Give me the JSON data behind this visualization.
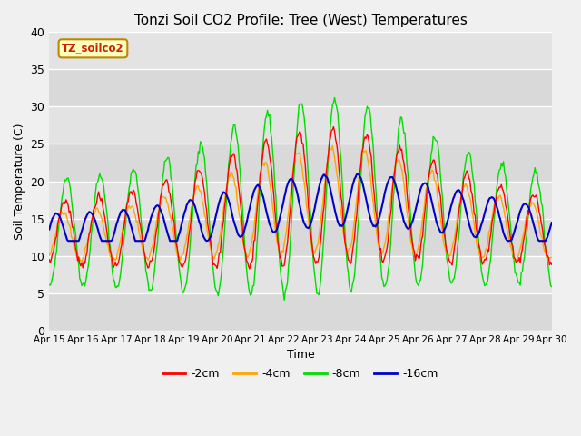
{
  "title": "Tonzi Soil CO2 Profile: Tree (West) Temperatures",
  "xlabel": "Time",
  "ylabel": "Soil Temperature (C)",
  "ylim": [
    0,
    40
  ],
  "legend_label": "TZ_soilco2",
  "line_labels": [
    "-2cm",
    "-4cm",
    "-8cm",
    "-16cm"
  ],
  "line_colors": [
    "#ff0000",
    "#ffa500",
    "#00dd00",
    "#0000cc"
  ],
  "bg_color": "#e8e8e8",
  "band_color": "#d0d0d0",
  "x_tick_labels": [
    "Apr 15",
    "Apr 16",
    "Apr 17",
    "Apr 18",
    "Apr 19",
    "Apr 20",
    "Apr 21",
    "Apr 22",
    "Apr 23",
    "Apr 24",
    "Apr 25",
    "Apr 26",
    "Apr 27",
    "Apr 28",
    "Apr 29",
    "Apr 30"
  ],
  "yticks": [
    0,
    5,
    10,
    15,
    20,
    25,
    30,
    35,
    40
  ],
  "num_points": 480
}
